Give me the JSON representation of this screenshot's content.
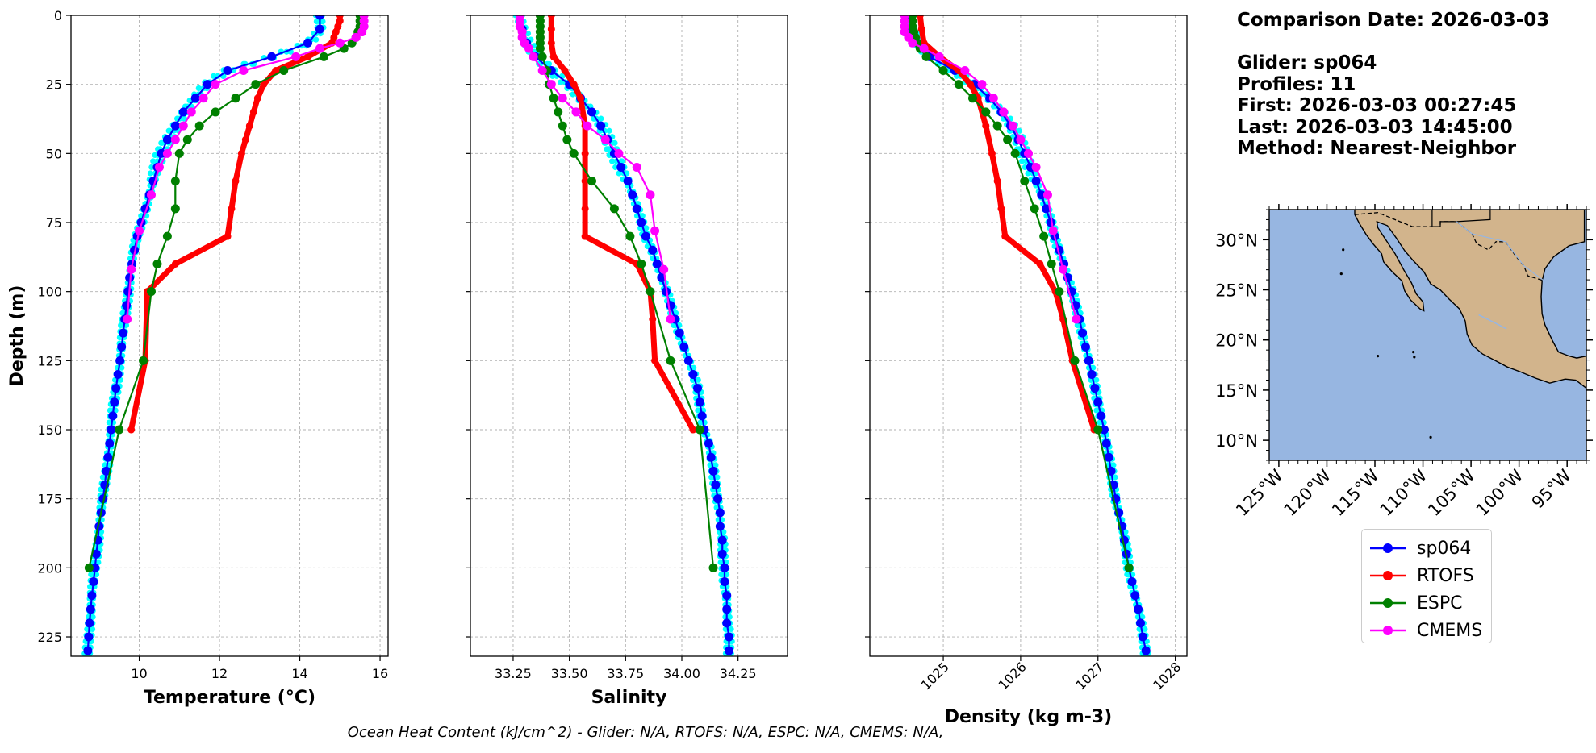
{
  "info": {
    "comparison_date": "Comparison Date: 2026-03-03",
    "glider": "Glider: sp064",
    "profiles": "Profiles: 11",
    "first": "First: 2026-03-03 00:27:45",
    "last": "Last: 2026-03-03 14:45:00",
    "method": "Method: Nearest-Neighbor"
  },
  "footer_text": "Ocean Heat Content (kJ/cm^2) - Glider: N/A,  RTOFS: N/A,  ESPC: N/A,  CMEMS: N/A,",
  "colors": {
    "sp064": "#0000ff",
    "glider_profiles": "#00ffff",
    "RTOFS": "#ff0000",
    "ESPC": "#008000",
    "CMEMS": "#ff00ff",
    "ocean": "#97b6e1",
    "land": "#d2b48c"
  },
  "legend": [
    {
      "name": "sp064",
      "color": "#0000ff"
    },
    {
      "name": "RTOFS",
      "color": "#ff0000"
    },
    {
      "name": "ESPC",
      "color": "#008000"
    },
    {
      "name": "CMEMS",
      "color": "#ff00ff"
    }
  ],
  "map": {
    "lon_ticks": [
      "125°W",
      "120°W",
      "115°W",
      "110°W",
      "105°W",
      "100°W",
      "95°W"
    ],
    "lat_ticks": [
      "30°N",
      "25°N",
      "20°N",
      "15°N",
      "10°N"
    ],
    "lon_range": [
      -126,
      -93
    ],
    "lat_range": [
      8,
      33
    ]
  },
  "chart_data": [
    {
      "type": "line",
      "xlabel": "Temperature (°C)",
      "ylabel": "Depth (m)",
      "xlim": [
        8.3,
        16.2
      ],
      "ylim": [
        232,
        0
      ],
      "xticks": [
        10,
        12,
        14,
        16
      ],
      "yticks": [
        0,
        25,
        50,
        75,
        100,
        125,
        150,
        175,
        200,
        225
      ],
      "grid": true,
      "series": [
        {
          "name": "sp064",
          "depth": [
            0,
            5,
            10,
            15,
            20,
            25,
            30,
            35,
            40,
            45,
            50,
            55,
            60,
            65,
            70,
            75,
            80,
            85,
            90,
            95,
            100,
            105,
            110,
            115,
            120,
            125,
            130,
            135,
            140,
            145,
            150,
            155,
            160,
            165,
            170,
            175,
            180,
            185,
            190,
            195,
            200,
            205,
            210,
            215,
            220,
            225,
            230
          ],
          "values": [
            14.5,
            14.5,
            14.2,
            13.3,
            12.2,
            11.7,
            11.4,
            11.1,
            10.9,
            10.7,
            10.55,
            10.45,
            10.35,
            10.25,
            10.15,
            10.05,
            9.95,
            9.88,
            9.82,
            9.76,
            9.72,
            9.68,
            9.64,
            9.6,
            9.56,
            9.52,
            9.47,
            9.42,
            9.38,
            9.34,
            9.3,
            9.26,
            9.22,
            9.18,
            9.14,
            9.1,
            9.05,
            9.0,
            8.97,
            8.93,
            8.9,
            8.86,
            8.82,
            8.79,
            8.76,
            8.74,
            8.72
          ]
        },
        {
          "name": "RTOFS",
          "depth": [
            0,
            2,
            4,
            6,
            8,
            10,
            15,
            20,
            25,
            30,
            35,
            40,
            45,
            50,
            60,
            70,
            80,
            90,
            100,
            125,
            150
          ],
          "values": [
            15.0,
            15.0,
            14.95,
            14.9,
            14.85,
            14.8,
            14.2,
            13.4,
            13.1,
            12.95,
            12.85,
            12.75,
            12.65,
            12.55,
            12.4,
            12.3,
            12.2,
            10.9,
            10.2,
            10.15,
            9.8
          ]
        },
        {
          "name": "ESPC",
          "depth": [
            0,
            2,
            4,
            6,
            8,
            10,
            12,
            15,
            20,
            25,
            30,
            35,
            40,
            45,
            50,
            60,
            70,
            80,
            90,
            100,
            125,
            150,
            200
          ],
          "values": [
            15.5,
            15.5,
            15.5,
            15.45,
            15.4,
            15.3,
            15.1,
            14.6,
            13.6,
            12.9,
            12.4,
            11.9,
            11.5,
            11.2,
            11.0,
            10.9,
            10.9,
            10.7,
            10.45,
            10.3,
            10.1,
            9.5,
            8.75
          ]
        },
        {
          "name": "CMEMS",
          "depth": [
            0,
            2,
            4,
            6,
            8,
            10,
            12,
            15,
            20,
            25,
            30,
            35,
            40,
            45,
            50,
            55,
            65,
            78,
            92,
            110
          ],
          "values": [
            15.6,
            15.6,
            15.6,
            15.55,
            15.4,
            15.0,
            14.5,
            13.9,
            12.6,
            11.9,
            11.6,
            11.3,
            11.1,
            10.9,
            10.7,
            10.5,
            10.3,
            10.0,
            9.8,
            9.7
          ]
        }
      ]
    },
    {
      "type": "line",
      "xlabel": "Salinity",
      "ylabel": "",
      "xlim": [
        33.06,
        34.47
      ],
      "ylim": [
        232,
        0
      ],
      "xticks": [
        33.25,
        33.5,
        33.75,
        34.0,
        34.25
      ],
      "grid": true,
      "series": [
        {
          "name": "sp064",
          "depth": [
            0,
            5,
            10,
            15,
            20,
            25,
            30,
            35,
            40,
            45,
            50,
            55,
            60,
            65,
            70,
            75,
            80,
            85,
            90,
            95,
            100,
            105,
            110,
            115,
            120,
            125,
            130,
            135,
            140,
            145,
            150,
            155,
            160,
            165,
            170,
            175,
            180,
            185,
            190,
            195,
            200,
            205,
            210,
            215,
            220,
            225,
            230
          ],
          "values": [
            33.28,
            33.29,
            33.31,
            33.35,
            33.42,
            33.5,
            33.55,
            33.6,
            33.64,
            33.67,
            33.7,
            33.73,
            33.76,
            33.78,
            33.8,
            33.82,
            33.84,
            33.87,
            33.89,
            33.91,
            33.93,
            33.95,
            33.97,
            33.99,
            34.01,
            34.03,
            34.05,
            34.07,
            34.08,
            34.09,
            34.1,
            34.12,
            34.13,
            34.14,
            34.15,
            34.16,
            34.17,
            34.17,
            34.18,
            34.18,
            34.19,
            34.19,
            34.2,
            34.2,
            34.2,
            34.21,
            34.21
          ]
        },
        {
          "name": "RTOFS",
          "depth": [
            0,
            5,
            10,
            15,
            20,
            25,
            30,
            40,
            50,
            60,
            70,
            80,
            90,
            100,
            110,
            125,
            150
          ],
          "values": [
            33.42,
            33.42,
            33.42,
            33.43,
            33.48,
            33.52,
            33.55,
            33.57,
            33.57,
            33.57,
            33.57,
            33.57,
            33.8,
            33.86,
            33.87,
            33.88,
            34.05
          ]
        },
        {
          "name": "ESPC",
          "depth": [
            0,
            2,
            4,
            6,
            8,
            10,
            12,
            15,
            20,
            25,
            30,
            35,
            40,
            45,
            50,
            60,
            70,
            80,
            90,
            100,
            125,
            150,
            200
          ],
          "values": [
            33.37,
            33.37,
            33.37,
            33.37,
            33.37,
            33.37,
            33.37,
            33.38,
            33.4,
            33.41,
            33.43,
            33.45,
            33.47,
            33.49,
            33.52,
            33.6,
            33.7,
            33.77,
            33.82,
            33.86,
            33.95,
            34.08,
            34.14
          ]
        },
        {
          "name": "CMEMS",
          "depth": [
            0,
            2,
            4,
            6,
            8,
            10,
            12,
            15,
            20,
            25,
            30,
            35,
            40,
            45,
            50,
            55,
            65,
            78,
            92,
            110
          ],
          "values": [
            33.28,
            33.28,
            33.28,
            33.29,
            33.29,
            33.3,
            33.32,
            33.34,
            33.38,
            33.42,
            33.47,
            33.53,
            33.58,
            33.66,
            33.72,
            33.8,
            33.86,
            33.88,
            33.92,
            33.95
          ]
        }
      ]
    },
    {
      "type": "line",
      "xlabel": "Density (kg m-3)",
      "ylabel": "",
      "xlim": [
        1024.05,
        1028.15
      ],
      "ylim": [
        232,
        0
      ],
      "xticks": [
        1025,
        1026,
        1027,
        1028
      ],
      "grid": true,
      "series": [
        {
          "name": "sp064",
          "depth": [
            0,
            5,
            10,
            15,
            20,
            25,
            30,
            35,
            40,
            45,
            50,
            55,
            60,
            65,
            70,
            75,
            80,
            85,
            90,
            95,
            100,
            105,
            110,
            115,
            120,
            125,
            130,
            135,
            140,
            145,
            150,
            155,
            160,
            165,
            170,
            175,
            180,
            185,
            190,
            195,
            200,
            205,
            210,
            215,
            220,
            225,
            230
          ],
          "values": [
            1024.55,
            1024.58,
            1024.66,
            1024.82,
            1025.15,
            1025.4,
            1025.6,
            1025.75,
            1025.87,
            1025.97,
            1026.05,
            1026.13,
            1026.2,
            1026.27,
            1026.33,
            1026.39,
            1026.44,
            1026.5,
            1026.56,
            1026.61,
            1026.66,
            1026.71,
            1026.76,
            1026.8,
            1026.84,
            1026.88,
            1026.92,
            1026.96,
            1027.0,
            1027.04,
            1027.08,
            1027.11,
            1027.14,
            1027.17,
            1027.2,
            1027.23,
            1027.27,
            1027.31,
            1027.34,
            1027.37,
            1027.4,
            1027.44,
            1027.48,
            1027.52,
            1027.55,
            1027.58,
            1027.62
          ]
        },
        {
          "name": "RTOFS",
          "depth": [
            0,
            5,
            10,
            15,
            20,
            25,
            30,
            40,
            50,
            60,
            70,
            80,
            90,
            100,
            110,
            125,
            150
          ],
          "values": [
            1024.7,
            1024.72,
            1024.75,
            1024.95,
            1025.2,
            1025.35,
            1025.45,
            1025.55,
            1025.63,
            1025.7,
            1025.75,
            1025.8,
            1026.25,
            1026.45,
            1026.55,
            1026.67,
            1026.95
          ]
        },
        {
          "name": "ESPC",
          "depth": [
            0,
            2,
            4,
            6,
            8,
            10,
            12,
            15,
            20,
            25,
            30,
            35,
            40,
            45,
            50,
            60,
            70,
            80,
            90,
            100,
            125,
            150,
            200
          ],
          "values": [
            1024.6,
            1024.6,
            1024.6,
            1024.62,
            1024.64,
            1024.66,
            1024.7,
            1024.78,
            1025.0,
            1025.2,
            1025.38,
            1025.55,
            1025.7,
            1025.83,
            1025.93,
            1026.05,
            1026.18,
            1026.3,
            1026.4,
            1026.5,
            1026.7,
            1027.0,
            1027.4
          ]
        },
        {
          "name": "CMEMS",
          "depth": [
            0,
            2,
            4,
            6,
            8,
            10,
            12,
            15,
            20,
            25,
            30,
            35,
            40,
            45,
            50,
            55,
            65,
            78,
            92,
            110
          ],
          "values": [
            1024.5,
            1024.5,
            1024.5,
            1024.5,
            1024.55,
            1024.6,
            1024.75,
            1024.95,
            1025.28,
            1025.5,
            1025.65,
            1025.78,
            1025.9,
            1026.0,
            1026.1,
            1026.2,
            1026.35,
            1026.42,
            1026.55,
            1026.72
          ]
        }
      ]
    }
  ]
}
